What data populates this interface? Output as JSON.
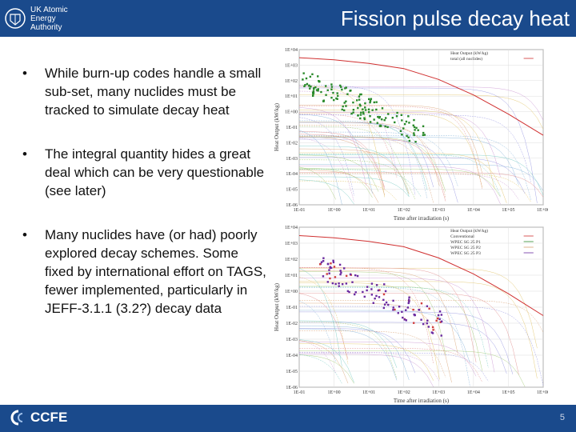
{
  "header": {
    "title": "Fission pulse decay heat",
    "logo_text": [
      "UK Atomic",
      "Energy",
      "Authority"
    ]
  },
  "bullets": [
    "While burn-up codes handle a small sub-set, many nuclides must be tracked to simulate decay heat",
    "The integral quantity hides a great deal which can be very questionable (see later)",
    "Many nuclides have (or had) poorly explored decay schemes. Some fixed by international effort on TAGS, fewer implemented, particularly in JEFF-3.1.1 (3.2?) decay data"
  ],
  "footer": {
    "logo": "CCFE",
    "page": "5"
  },
  "colors": {
    "brand": "#1a4a8c",
    "red_curve": "#d03030",
    "green": "#2a8a2a",
    "purple": "#6a2aa0"
  },
  "chart_data": [
    {
      "type": "line",
      "xlabel": "Time after irradiation (s)",
      "ylabel": "Heat Output (kW/kg)",
      "x_ticks": [
        "1E-01",
        "1E+00",
        "1E+01",
        "1E+02",
        "1E+03",
        "1E+04",
        "1E+05",
        "1E+06"
      ],
      "y_ticks": [
        "1E+04",
        "1E+03",
        "1E+02",
        "1E+01",
        "1E+00",
        "1E-01",
        "1E-02",
        "1E-03",
        "1E-04",
        "1E-05",
        "1E-06"
      ],
      "legend": [
        "Heat Output (kW/kg)",
        "total (all nuclides)"
      ],
      "series": [
        {
          "name": "total",
          "x": [
            0.1,
            1,
            10,
            100,
            1000,
            10000,
            100000,
            1000000
          ],
          "y": [
            3000,
            2200,
            1300,
            600,
            120,
            12,
            0.7,
            0.03
          ]
        }
      ]
    },
    {
      "type": "line",
      "xlabel": "Time after irradiation (s)",
      "ylabel": "Heat Output (kW/kg)",
      "x_ticks": [
        "1E-01",
        "1E+00",
        "1E+01",
        "1E+02",
        "1E+03",
        "1E+04",
        "1E+05",
        "1E+06"
      ],
      "y_ticks": [
        "1E+04",
        "1E+03",
        "1E+02",
        "1E+01",
        "1E+00",
        "1E-01",
        "1E-02",
        "1E-03",
        "1E-04",
        "1E-05",
        "1E-06"
      ],
      "legend": [
        "Heat Output (kW/kg)",
        "Conventional",
        "WPEC SG 25 P1",
        "WPEC SG 25 P2",
        "WPEC SG 25 P3"
      ],
      "series": [
        {
          "name": "total",
          "x": [
            0.1,
            1,
            10,
            100,
            1000,
            10000,
            100000,
            1000000
          ],
          "y": [
            3000,
            2200,
            1300,
            600,
            120,
            12,
            0.7,
            0.03
          ]
        }
      ]
    }
  ]
}
